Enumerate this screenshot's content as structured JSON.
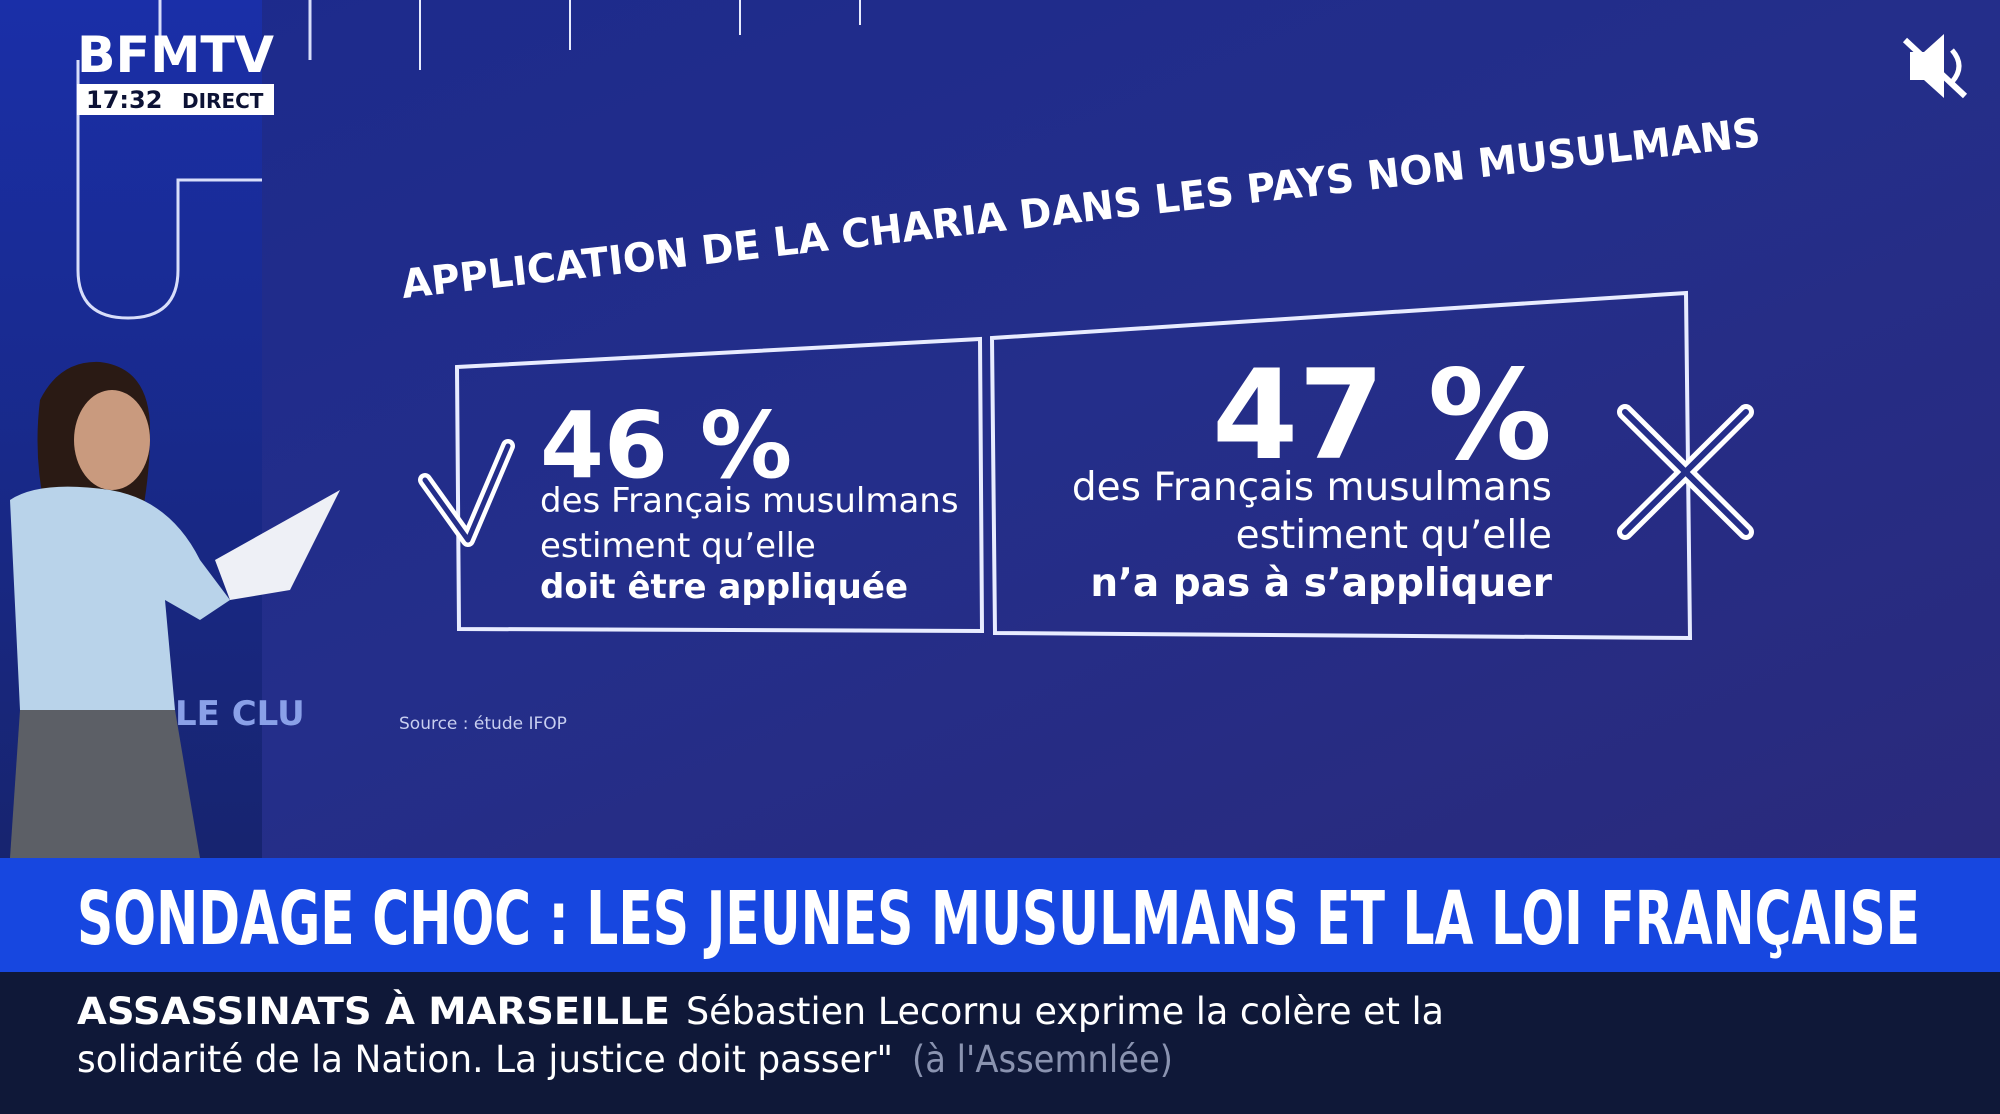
{
  "header": {
    "logo": "BFMTV",
    "time": "17:32",
    "live": "DIRECT"
  },
  "screen": {
    "title": "APPLICATION DE LA CHARIA DANS LES PAYS NON MUSULMANS",
    "cards": [
      {
        "figure": "46 %",
        "lines": [
          "des Français musulmans",
          "estiment qu’elle",
          "doit être appliquée"
        ]
      },
      {
        "figure": "47 %",
        "lines": [
          "des Français musulmans",
          "estiment qu’elle",
          "n’a pas à s’appliquer"
        ]
      }
    ],
    "source": "Source : étude IFOP",
    "wall_text": "LE CLU"
  },
  "banner": {
    "headline": "SONDAGE CHOC : LES JEUNES MUSULMANS ET LA LOI FRANÇAISE"
  },
  "ticker": {
    "label": "ASSASSINATS À MARSEILLE",
    "line1": "Sébastien Lecornu exprime la colère et la",
    "line2": "solidarité de la Nation. La justice doit passer\"",
    "aside": "(à l'Assemnlée)"
  }
}
